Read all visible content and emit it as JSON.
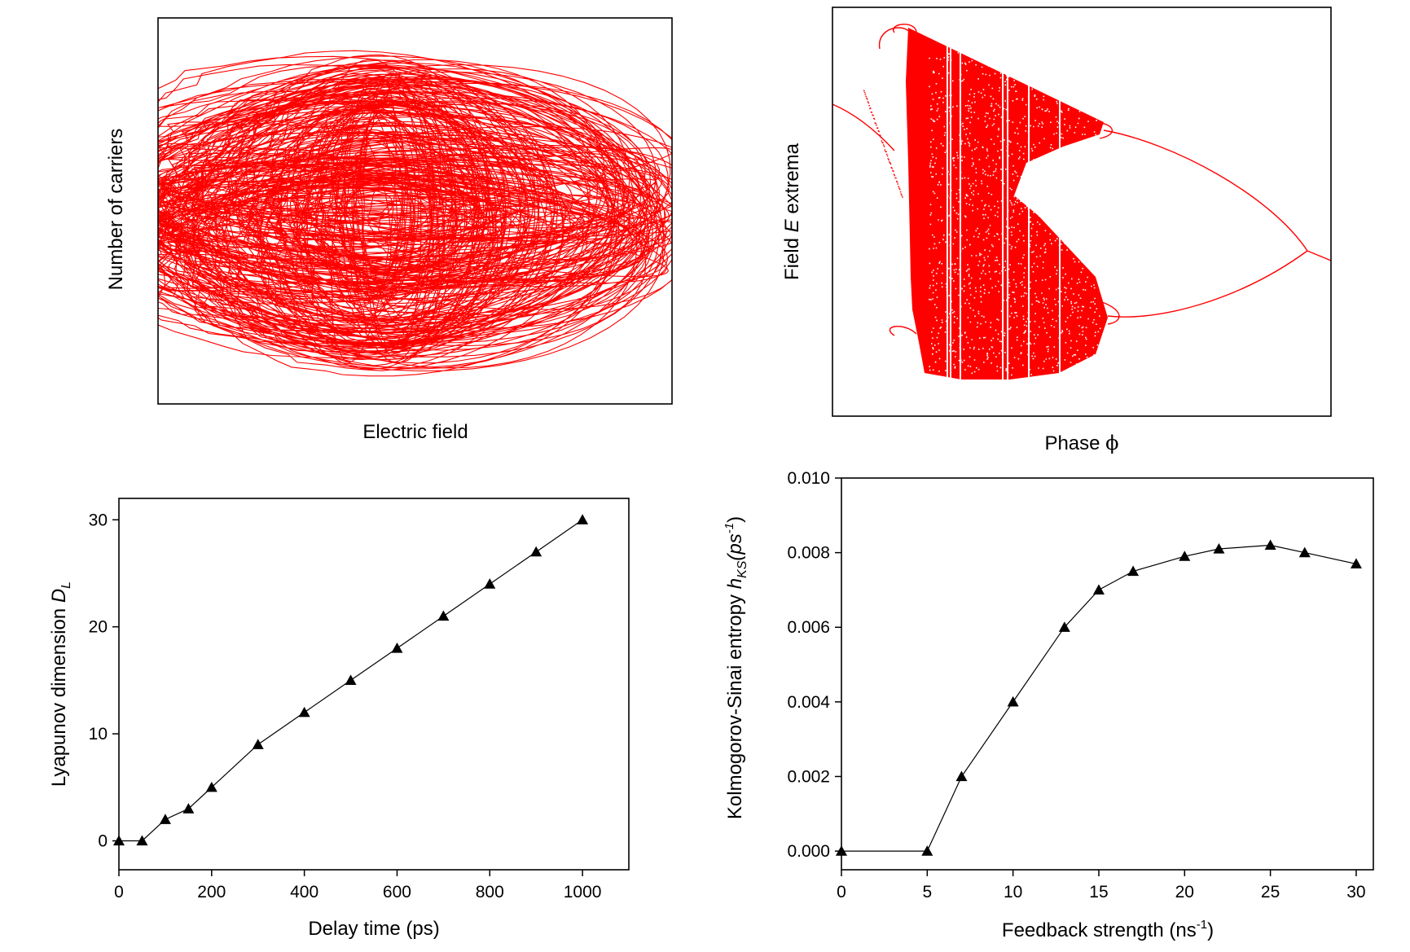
{
  "chart_data": [
    {
      "id": "attractor",
      "type": "line",
      "title": "",
      "xlabel": "Electric field",
      "ylabel": "Number of carriers",
      "series": [
        {
          "name": "attractor",
          "color": "#ff0000",
          "description": "phase-space trajectory"
        }
      ],
      "grid": false
    },
    {
      "id": "bifurcation",
      "type": "scatter",
      "title": "",
      "xlabel_prefix": "Phase ",
      "xlabel_symbol": "ϕ",
      "ylabel_prefix": "Field ",
      "ylabel_italic": "E",
      "ylabel_suffix": " extrema",
      "series": [
        {
          "name": "bifurcation",
          "color": "#ff0000"
        }
      ],
      "grid": false
    },
    {
      "id": "lyapunov",
      "type": "line",
      "title": "",
      "xlabel": "Delay time (ps)",
      "ylabel_text": "Lyapunov dimension ",
      "ylabel_symbol": "D",
      "ylabel_sub": "L",
      "x": [
        0,
        50,
        100,
        150,
        200,
        300,
        400,
        500,
        600,
        700,
        800,
        900,
        1000
      ],
      "y": [
        0,
        0,
        2,
        3,
        5,
        9,
        12,
        15,
        18,
        21,
        24,
        27,
        30
      ],
      "xlim": [
        0,
        1100
      ],
      "ylim": [
        -2.7,
        32
      ],
      "xticks": [
        "0",
        "200",
        "400",
        "600",
        "800",
        "1000"
      ],
      "yticks": [
        "0",
        "10",
        "20",
        "30"
      ],
      "marker": "triangle",
      "color": "#000000",
      "grid": false
    },
    {
      "id": "entropy",
      "type": "line",
      "title": "",
      "xlabel_text": "Feedback strength (ns",
      "xlabel_sup": "-1",
      "xlabel_close": ")",
      "ylabel_text": "Kolmogorov-Sinai entropy ",
      "ylabel_symbol": "h",
      "ylabel_sub": "KS",
      "ylabel_unit": "(ps",
      "ylabel_sup": "-1",
      "ylabel_close": ")",
      "x": [
        0,
        5,
        7,
        10,
        13,
        15,
        17,
        20,
        22,
        25,
        27,
        30
      ],
      "y": [
        0.0,
        0.0,
        0.002,
        0.004,
        0.006,
        0.007,
        0.0075,
        0.0079,
        0.0081,
        0.0082,
        0.008,
        0.0077
      ],
      "xlim": [
        0,
        31
      ],
      "ylim": [
        -0.0005,
        0.01
      ],
      "xticks": [
        "0",
        "5",
        "10",
        "15",
        "20",
        "25",
        "30"
      ],
      "yticks": [
        "0.000",
        "0.002",
        "0.004",
        "0.006",
        "0.008",
        "0.010"
      ],
      "marker": "triangle",
      "color": "#000000",
      "grid": false
    }
  ]
}
